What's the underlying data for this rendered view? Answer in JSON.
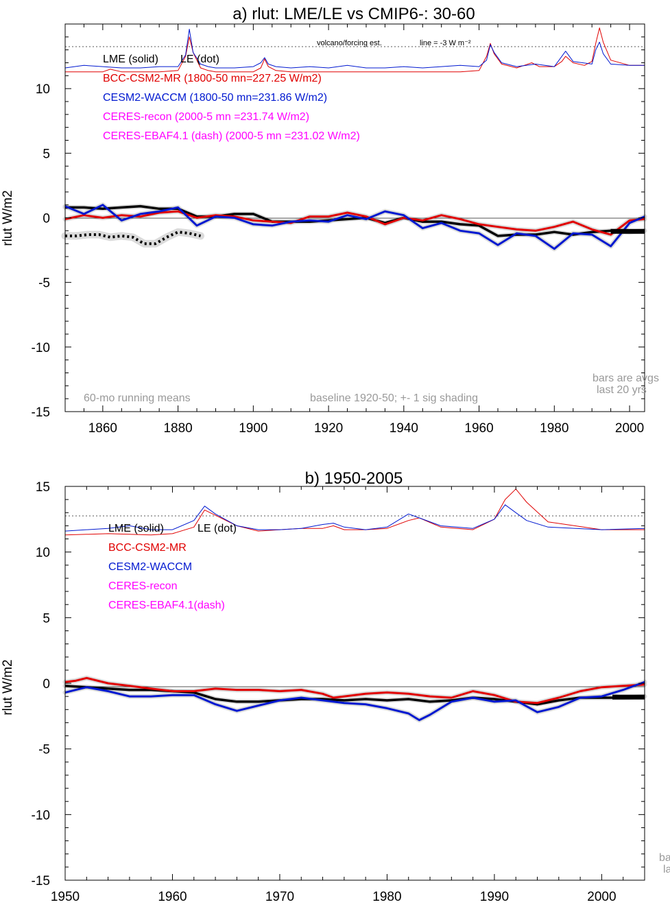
{
  "colors": {
    "lme": "#000000",
    "bcc": "#e00000",
    "cesm": "#0018d0",
    "ceres": "#ff00ff",
    "note": "#999999",
    "shade": "#cccccc"
  },
  "chart_data": [
    {
      "type": "line",
      "title": "a) rlut: LME/LE vs CMIP6-: 30-60",
      "ylabel": "rlut W/m2",
      "xlabel": "",
      "xlim": [
        1850,
        2004
      ],
      "ylim": [
        -15,
        15
      ],
      "xticks": [
        1860,
        1880,
        1900,
        1920,
        1940,
        1960,
        1980,
        2000
      ],
      "yticks": [
        -15,
        -10,
        -5,
        0,
        5,
        10
      ],
      "grid": false,
      "legend_position": "top-left",
      "legend": [
        "LME (solid)",
        "LE (dot)",
        "BCC-CSM2-MR (1800-50 mn=227.25 W/m2)",
        "CESM2-WACCM (1800-50 mn=231.86 W/m2)",
        "CERES-recon (2000-5 mn =231.74 W/m2)",
        "CERES-EBAF4.1 (dash) (2000-5 mn =231.02 W/m2)"
      ],
      "annotations": [
        "volcano/forcing est.",
        "line = -3 W m⁻²",
        "60-mo running means",
        "baseline 1920-50; +- 1 sig shading",
        "bars are avgs",
        "last 20 yrs"
      ],
      "series": [
        {
          "name": "LME (solid)",
          "color": "#000000",
          "x": [
            1850,
            1855,
            1860,
            1865,
            1870,
            1875,
            1880,
            1885,
            1890,
            1895,
            1900,
            1905,
            1910,
            1915,
            1920,
            1925,
            1930,
            1935,
            1940,
            1945,
            1950,
            1955,
            1960,
            1965,
            1970,
            1975,
            1980,
            1985,
            1990,
            1995,
            2000,
            2004
          ],
          "y": [
            0.8,
            0.8,
            0.7,
            0.8,
            0.9,
            0.7,
            0.7,
            0.1,
            0.1,
            0.3,
            0.3,
            -0.3,
            -0.3,
            -0.3,
            -0.2,
            -0.1,
            0.0,
            -0.4,
            0.0,
            -0.3,
            -0.3,
            -0.5,
            -0.6,
            -1.4,
            -1.3,
            -1.3,
            -1.1,
            -1.3,
            -1.1,
            -1.0,
            -1.1,
            -1.0
          ]
        },
        {
          "name": "LE (dot)",
          "color": "#000000",
          "x": [
            1850,
            1853,
            1856,
            1859,
            1862,
            1865,
            1868,
            1871,
            1874,
            1877,
            1880,
            1883,
            1886
          ],
          "y": [
            -1.4,
            -1.4,
            -1.3,
            -1.3,
            -1.5,
            -1.4,
            -1.5,
            -2.0,
            -2.0,
            -1.5,
            -1.1,
            -1.2,
            -1.4
          ]
        },
        {
          "name": "BCC-CSM2-MR",
          "color": "#e00000",
          "x": [
            1850,
            1855,
            1860,
            1865,
            1870,
            1875,
            1880,
            1885,
            1890,
            1895,
            1900,
            1905,
            1910,
            1915,
            1920,
            1925,
            1930,
            1935,
            1940,
            1945,
            1950,
            1955,
            1960,
            1965,
            1970,
            1975,
            1980,
            1985,
            1990,
            1995,
            2000,
            2004
          ],
          "y": [
            -0.1,
            0.2,
            0.0,
            0.2,
            0.1,
            0.4,
            0.5,
            0.0,
            0.2,
            0.1,
            -0.2,
            -0.3,
            -0.4,
            0.1,
            0.1,
            0.4,
            0.1,
            -0.5,
            0.0,
            -0.2,
            0.2,
            -0.1,
            -0.5,
            -0.7,
            -0.9,
            -1.0,
            -0.7,
            -0.3,
            -0.9,
            -1.3,
            -0.2,
            -0.1
          ]
        },
        {
          "name": "CESM2-WACCM",
          "color": "#0018d0",
          "x": [
            1850,
            1855,
            1860,
            1865,
            1870,
            1875,
            1880,
            1885,
            1890,
            1895,
            1900,
            1905,
            1910,
            1915,
            1920,
            1925,
            1930,
            1935,
            1940,
            1945,
            1950,
            1955,
            1960,
            1965,
            1970,
            1975,
            1980,
            1985,
            1990,
            1995,
            2000,
            2004
          ],
          "y": [
            0.9,
            0.3,
            1.0,
            -0.2,
            0.3,
            0.5,
            0.8,
            -0.6,
            0.1,
            0.0,
            -0.5,
            -0.6,
            -0.3,
            -0.2,
            -0.3,
            0.2,
            -0.1,
            0.5,
            0.2,
            -0.8,
            -0.4,
            -1.0,
            -1.2,
            -2.1,
            -1.2,
            -1.4,
            -2.4,
            -1.2,
            -1.3,
            -2.2,
            -0.4,
            0.1
          ]
        },
        {
          "name": "BCC-CSM2-MR volcano/forcing est.",
          "color": "#e00000",
          "x": [
            1850,
            1855,
            1860,
            1862,
            1865,
            1870,
            1875,
            1880,
            1882,
            1883,
            1884,
            1886,
            1888,
            1890,
            1895,
            1900,
            1902,
            1903,
            1904,
            1906,
            1910,
            1915,
            1920,
            1925,
            1930,
            1935,
            1940,
            1945,
            1950,
            1955,
            1960,
            1962,
            1963,
            1964,
            1966,
            1970,
            1972,
            1974,
            1976,
            1980,
            1982,
            1983,
            1985,
            1988,
            1990,
            1991,
            1992,
            1993,
            1995,
            2000,
            2004
          ],
          "y": [
            11.3,
            11.3,
            11.3,
            11.5,
            11.3,
            11.3,
            11.3,
            11.4,
            12.5,
            14.0,
            12.8,
            11.6,
            11.4,
            11.3,
            11.3,
            11.3,
            11.6,
            12.3,
            11.7,
            11.4,
            11.3,
            11.3,
            11.3,
            11.3,
            11.3,
            11.3,
            11.3,
            11.3,
            11.3,
            11.3,
            11.4,
            12.5,
            13.5,
            12.7,
            11.9,
            11.6,
            11.8,
            12.0,
            11.7,
            11.7,
            12.1,
            12.5,
            12.0,
            11.8,
            12.1,
            13.5,
            14.7,
            13.6,
            12.2,
            11.8,
            11.8
          ]
        },
        {
          "name": "CESM2-WACCM volcano/forcing est.",
          "color": "#0018d0",
          "x": [
            1850,
            1855,
            1860,
            1865,
            1870,
            1875,
            1880,
            1882,
            1883,
            1884,
            1886,
            1888,
            1890,
            1895,
            1900,
            1902,
            1903,
            1904,
            1906,
            1910,
            1915,
            1920,
            1925,
            1930,
            1935,
            1940,
            1945,
            1950,
            1955,
            1960,
            1962,
            1963,
            1964,
            1966,
            1970,
            1975,
            1980,
            1982,
            1983,
            1985,
            1990,
            1991,
            1992,
            1993,
            1995,
            2000,
            2004
          ],
          "y": [
            11.6,
            11.8,
            11.7,
            11.6,
            11.6,
            11.7,
            11.7,
            12.6,
            14.6,
            12.8,
            11.9,
            11.7,
            11.6,
            11.6,
            11.7,
            12.0,
            12.4,
            11.9,
            11.7,
            11.6,
            11.7,
            11.6,
            11.8,
            11.6,
            11.6,
            11.7,
            11.6,
            11.7,
            11.8,
            11.7,
            12.2,
            13.4,
            12.8,
            12.0,
            11.7,
            11.9,
            11.7,
            12.5,
            12.9,
            12.1,
            11.9,
            13.0,
            13.6,
            12.7,
            11.9,
            11.8,
            11.8
          ]
        }
      ]
    },
    {
      "type": "line",
      "title": "b) 1950-2005",
      "ylabel": "rlut W/m2",
      "xlabel": "",
      "xlim": [
        1950,
        2004
      ],
      "ylim": [
        -15,
        15
      ],
      "xticks": [
        1950,
        1960,
        1970,
        1980,
        1990,
        2000
      ],
      "yticks": [
        -15,
        -10,
        -5,
        0,
        5,
        10,
        15
      ],
      "grid": false,
      "legend_position": "top-left",
      "legend": [
        "LME (solid)",
        "LE (dot)",
        "BCC-CSM2-MR",
        "CESM2-WACCM",
        "CERES-recon",
        "CERES-EBAF4.1(dash)"
      ],
      "annotations": [
        "ba",
        "la"
      ],
      "series": [
        {
          "name": "LME (solid)",
          "color": "#000000",
          "x": [
            1950,
            1952,
            1954,
            1956,
            1958,
            1960,
            1962,
            1964,
            1966,
            1968,
            1970,
            1972,
            1974,
            1976,
            1978,
            1980,
            1982,
            1984,
            1986,
            1988,
            1990,
            1992,
            1994,
            1996,
            1998,
            2000,
            2002,
            2004
          ],
          "y": [
            -0.2,
            -0.3,
            -0.4,
            -0.5,
            -0.5,
            -0.6,
            -0.7,
            -1.2,
            -1.4,
            -1.4,
            -1.3,
            -1.2,
            -1.2,
            -1.3,
            -1.2,
            -1.3,
            -1.2,
            -1.4,
            -1.3,
            -1.1,
            -1.2,
            -1.4,
            -1.6,
            -1.3,
            -1.1,
            -1.1,
            -1.1,
            -1.0
          ]
        },
        {
          "name": "BCC-CSM2-MR",
          "color": "#e00000",
          "x": [
            1950,
            1951,
            1952,
            1954,
            1956,
            1958,
            1960,
            1962,
            1964,
            1966,
            1968,
            1970,
            1972,
            1974,
            1975,
            1976,
            1978,
            1980,
            1982,
            1984,
            1986,
            1988,
            1990,
            1992,
            1994,
            1996,
            1998,
            2000,
            2002,
            2004
          ],
          "y": [
            0.1,
            0.2,
            0.4,
            0.0,
            -0.2,
            -0.4,
            -0.6,
            -0.6,
            -0.4,
            -0.5,
            -0.5,
            -0.6,
            -0.5,
            -0.8,
            -1.1,
            -1.0,
            -0.8,
            -0.7,
            -0.8,
            -1.0,
            -1.1,
            -0.6,
            -0.9,
            -1.4,
            -1.5,
            -1.1,
            -0.6,
            -0.3,
            -0.2,
            -0.1
          ]
        },
        {
          "name": "CESM2-WACCM",
          "color": "#0018d0",
          "x": [
            1950,
            1952,
            1954,
            1956,
            1958,
            1960,
            1962,
            1964,
            1966,
            1968,
            1970,
            1972,
            1974,
            1976,
            1978,
            1980,
            1982,
            1983,
            1984,
            1986,
            1988,
            1990,
            1992,
            1994,
            1996,
            1998,
            2000,
            2002,
            2004
          ],
          "y": [
            -0.7,
            -0.3,
            -0.6,
            -1.0,
            -1.0,
            -0.9,
            -0.9,
            -1.6,
            -2.1,
            -1.7,
            -1.3,
            -1.1,
            -1.3,
            -1.5,
            -1.6,
            -1.9,
            -2.3,
            -2.8,
            -2.4,
            -1.4,
            -1.1,
            -1.4,
            -1.3,
            -2.2,
            -1.8,
            -1.1,
            -1.0,
            -0.5,
            0.1
          ]
        },
        {
          "name": "BCC-CSM2-MR volcano/forcing est.",
          "color": "#e00000",
          "x": [
            1950,
            1954,
            1958,
            1960,
            1962,
            1963,
            1964,
            1966,
            1968,
            1970,
            1972,
            1974,
            1975,
            1976,
            1978,
            1980,
            1982,
            1983,
            1985,
            1988,
            1990,
            1991,
            1992,
            1993,
            1995,
            2000,
            2004
          ],
          "y": [
            11.3,
            11.4,
            11.3,
            11.4,
            11.9,
            13.2,
            12.8,
            12.0,
            11.6,
            11.7,
            11.8,
            11.8,
            12.0,
            11.7,
            11.7,
            11.8,
            12.4,
            12.6,
            11.9,
            11.7,
            12.5,
            14.0,
            14.8,
            13.8,
            12.3,
            11.7,
            11.7
          ]
        },
        {
          "name": "CESM2-WACCM volcano/forcing est.",
          "color": "#0018d0",
          "x": [
            1950,
            1954,
            1956,
            1958,
            1960,
            1962,
            1963,
            1964,
            1966,
            1968,
            1970,
            1972,
            1974,
            1975,
            1976,
            1978,
            1980,
            1982,
            1983,
            1985,
            1988,
            1990,
            1991,
            1992,
            1993,
            1995,
            2000,
            2004
          ],
          "y": [
            11.6,
            11.8,
            12.0,
            11.7,
            11.7,
            12.4,
            13.5,
            12.9,
            12.0,
            11.7,
            11.7,
            11.8,
            12.1,
            12.2,
            11.9,
            11.7,
            11.9,
            12.9,
            12.6,
            12.0,
            11.8,
            12.5,
            13.6,
            13.0,
            12.4,
            11.9,
            11.7,
            11.8
          ]
        }
      ]
    }
  ]
}
